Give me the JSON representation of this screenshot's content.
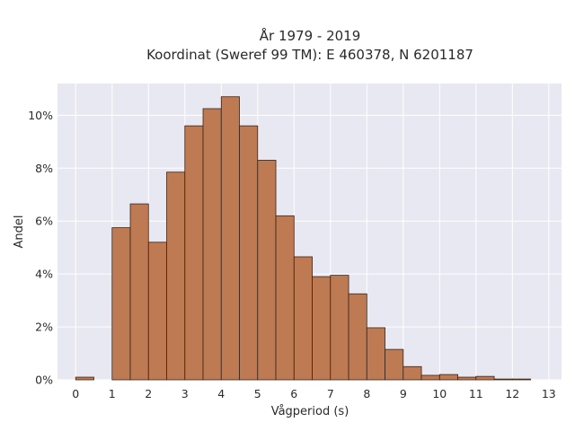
{
  "chart_data": {
    "type": "bar",
    "title_lines": [
      "År 1979 - 2019",
      "Koordinat (Sweref 99 TM): E 460378, N 6201187"
    ],
    "xlabel": "Vågperiod (s)",
    "ylabel": "Andel",
    "bin_width": 0.5,
    "bin_starts": [
      0,
      0.5,
      1,
      1.5,
      2,
      2.5,
      3,
      3.5,
      4,
      4.5,
      5,
      5.5,
      6,
      6.5,
      7,
      7.5,
      8,
      8.5,
      9,
      9.5,
      10,
      10.5,
      11,
      11.5,
      12
    ],
    "values": [
      0.1,
      0,
      5.75,
      6.65,
      5.2,
      7.85,
      9.6,
      10.25,
      10.7,
      9.6,
      8.3,
      6.2,
      4.65,
      3.9,
      3.95,
      3.25,
      1.97,
      1.15,
      0.5,
      0.17,
      0.2,
      0.1,
      0.13,
      0.03,
      0.03
    ],
    "xlim": [
      -0.5,
      13.35
    ],
    "ylim": [
      0,
      11.2
    ],
    "x_ticks": [
      0,
      1,
      2,
      3,
      4,
      5,
      6,
      7,
      8,
      9,
      10,
      11,
      12,
      13
    ],
    "x_tick_labels": [
      "0",
      "1",
      "2",
      "3",
      "4",
      "5",
      "6",
      "7",
      "8",
      "9",
      "10",
      "11",
      "12",
      "13"
    ],
    "y_ticks": [
      0,
      2,
      4,
      6,
      8,
      10
    ],
    "y_tick_labels": [
      "0%",
      "2%",
      "4%",
      "6%",
      "8%",
      "10%"
    ],
    "grid": true,
    "colors": {
      "bar_fill": "#bd7a53",
      "bar_stroke": "#3a2418",
      "plot_background": "#e8e8f2",
      "grid": "#ffffff"
    }
  }
}
